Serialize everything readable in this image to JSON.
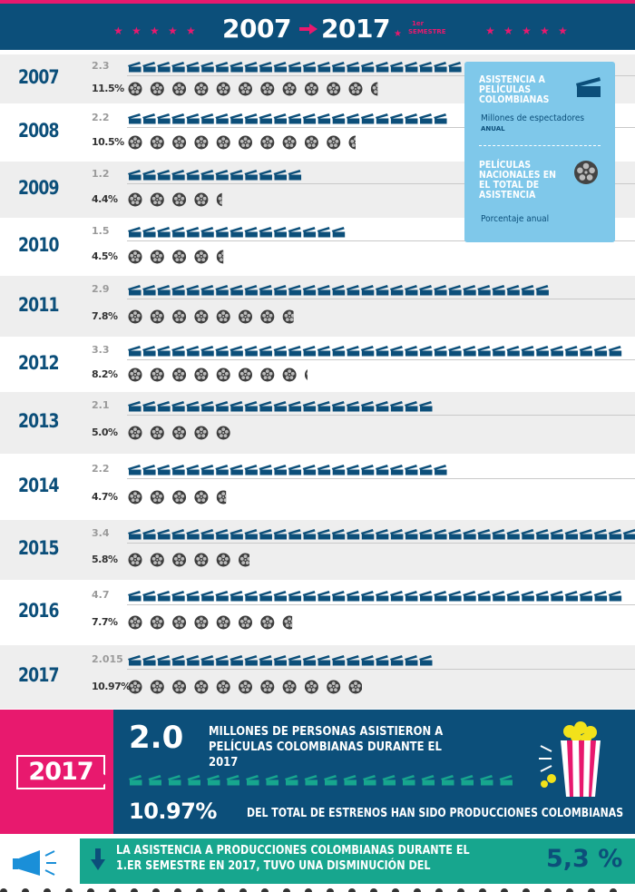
{
  "header": {
    "start_year": "2007",
    "end_year": "2017",
    "end_note_1": "1er",
    "end_note_2": "SEMESTRE"
  },
  "legend": {
    "attendance_title": "ASISTENCIA A PELÍCULAS COLOMBIANAS",
    "attendance_sub": "Millones de espectadores",
    "attendance_sub2": "ANUAL",
    "share_title": "PELÍCULAS NACIONALES EN EL TOTAL DE ASISTENCIA",
    "share_sub": "Porcentaje anual",
    "clapper_icon": "clapperboard-icon",
    "reel_icon": "film-reel-icon"
  },
  "chart_data": {
    "type": "bar",
    "categories": [
      "2007",
      "2008",
      "2009",
      "2010",
      "2011",
      "2012",
      "2013",
      "2014",
      "2015",
      "2016",
      "2017"
    ],
    "series": [
      {
        "name": "ASISTENCIA A PELÍCULAS COLOMBIANAS",
        "unit": "Millones de espectadores",
        "labels": [
          "2.3",
          "2.2",
          "1.2",
          "1.5",
          "2.9",
          "3.3",
          "2.1",
          "2.2",
          "3.4",
          "4.7",
          "2.015"
        ],
        "values": [
          2.3,
          2.2,
          1.2,
          1.5,
          2.9,
          3.3,
          2.1,
          2.2,
          3.4,
          4.7,
          2.015
        ],
        "icon": "clapperboard-icon",
        "icon_counts": [
          23,
          22,
          12,
          15,
          29,
          34,
          21,
          22,
          35,
          34,
          21
        ]
      },
      {
        "name": "PELÍCULAS NACIONALES EN EL TOTAL DE ASISTENCIA",
        "unit": "Porcentaje anual",
        "labels": [
          "11.5%",
          "10.5%",
          "4.4%",
          "4.5%",
          "7.8%",
          "8.2%",
          "5.0%",
          "4.7%",
          "5.8%",
          "7.7%",
          "10.97%"
        ],
        "values": [
          11.5,
          10.5,
          4.4,
          4.5,
          7.8,
          8.2,
          5.0,
          4.7,
          5.8,
          7.7,
          10.97
        ],
        "icon": "film-reel-icon"
      }
    ]
  },
  "summary": {
    "year": "2017",
    "big_value": "2.0",
    "text1": "MILLONES DE PERSONAS ASISTIERON A PELÍCULAS COLOMBIANAS DURANTE EL 2017",
    "pct_value": "10.97%",
    "text2": "DEL TOTAL DE ESTRENOS HAN SIDO PRODUCCIONES COLOMBIANAS",
    "clapper_count": 20,
    "icon": "popcorn-icon"
  },
  "footer": {
    "text": "LA ASISTENCIA A PRODUCCIONES COLOMBIANAS DURANTE EL 1.ER SEMESTRE EN 2017, TUVO UNA DISMINUCIÓN DEL",
    "value": "5,3 %",
    "icon_megaphone": "megaphone-icon",
    "icon_arrow": "arrow-down-icon"
  },
  "colors": {
    "navy": "#0c4f7a",
    "pink": "#e8196e",
    "light_blue": "#7fc8ea",
    "teal": "#17a68e",
    "row_alt": "#eeeeee"
  }
}
